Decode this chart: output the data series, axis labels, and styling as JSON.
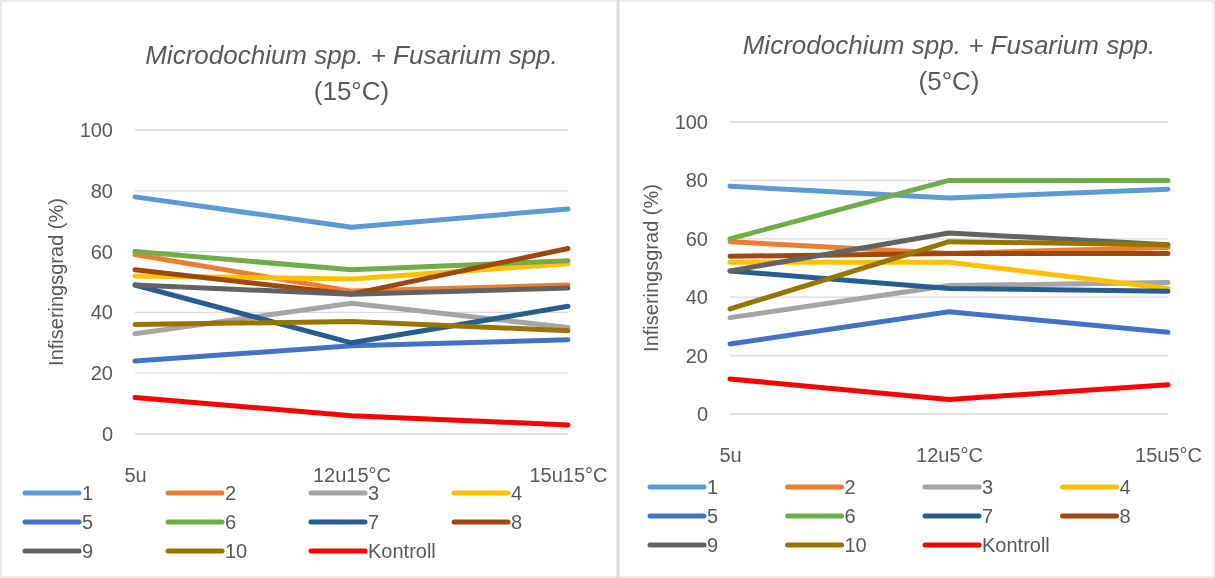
{
  "chart_data": [
    {
      "type": "line",
      "title": "Microdochium spp. + Fusarium spp. (15°C)",
      "ylabel": "Infiseringsgrad (%)",
      "categories": [
        "5u",
        "12u15°C",
        "15u15°C"
      ],
      "ylim": [
        0,
        100
      ],
      "yticks": [
        0,
        20,
        40,
        60,
        80,
        100
      ],
      "grid": "y",
      "legend": "bottom",
      "marker": "none",
      "line_style": "solid",
      "series": [
        {
          "name": "1",
          "color": "#5b9bd5",
          "values": [
            78,
            68,
            74
          ]
        },
        {
          "name": "2",
          "color": "#ed7d31",
          "values": [
            59,
            47,
            49
          ]
        },
        {
          "name": "3",
          "color": "#a5a5a5",
          "values": [
            33,
            43,
            35
          ]
        },
        {
          "name": "4",
          "color": "#ffc000",
          "values": [
            52,
            51,
            56
          ]
        },
        {
          "name": "5",
          "color": "#4472c4",
          "values": [
            24,
            29,
            31
          ]
        },
        {
          "name": "6",
          "color": "#70ad47",
          "values": [
            60,
            54,
            57
          ]
        },
        {
          "name": "7",
          "color": "#255e91",
          "values": [
            49,
            30,
            42
          ]
        },
        {
          "name": "8",
          "color": "#9e480e",
          "values": [
            54,
            46,
            61
          ]
        },
        {
          "name": "9",
          "color": "#636363",
          "values": [
            49,
            46,
            48
          ]
        },
        {
          "name": "10",
          "color": "#997300",
          "values": [
            36,
            37,
            34
          ]
        },
        {
          "name": "Kontroll",
          "color": "#ff0000",
          "values": [
            12,
            6,
            3
          ]
        }
      ]
    },
    {
      "type": "line",
      "title": "Microdochium spp. + Fusarium spp. (5°C)",
      "ylabel": "Infiseringsgrad (%)",
      "categories": [
        "5u",
        "12u5°C",
        "15u5°C"
      ],
      "ylim": [
        0,
        100
      ],
      "yticks": [
        0,
        20,
        40,
        60,
        80,
        100
      ],
      "grid": "y",
      "legend": "bottom",
      "marker": "none",
      "line_style": "solid",
      "series": [
        {
          "name": "1",
          "color": "#5b9bd5",
          "values": [
            78,
            74,
            77
          ]
        },
        {
          "name": "2",
          "color": "#ed7d31",
          "values": [
            59,
            55,
            57
          ]
        },
        {
          "name": "3",
          "color": "#a5a5a5",
          "values": [
            33,
            44,
            45
          ]
        },
        {
          "name": "4",
          "color": "#ffc000",
          "values": [
            52,
            52,
            43
          ]
        },
        {
          "name": "5",
          "color": "#4472c4",
          "values": [
            24,
            35,
            28
          ]
        },
        {
          "name": "6",
          "color": "#70ad47",
          "values": [
            60,
            80,
            80
          ]
        },
        {
          "name": "7",
          "color": "#255e91",
          "values": [
            49,
            43,
            42
          ]
        },
        {
          "name": "8",
          "color": "#9e480e",
          "values": [
            54,
            55,
            55
          ]
        },
        {
          "name": "9",
          "color": "#636363",
          "values": [
            49,
            62,
            58
          ]
        },
        {
          "name": "10",
          "color": "#997300",
          "values": [
            36,
            59,
            58
          ]
        },
        {
          "name": "Kontroll",
          "color": "#ff0000",
          "values": [
            12,
            5,
            10
          ]
        }
      ]
    }
  ]
}
